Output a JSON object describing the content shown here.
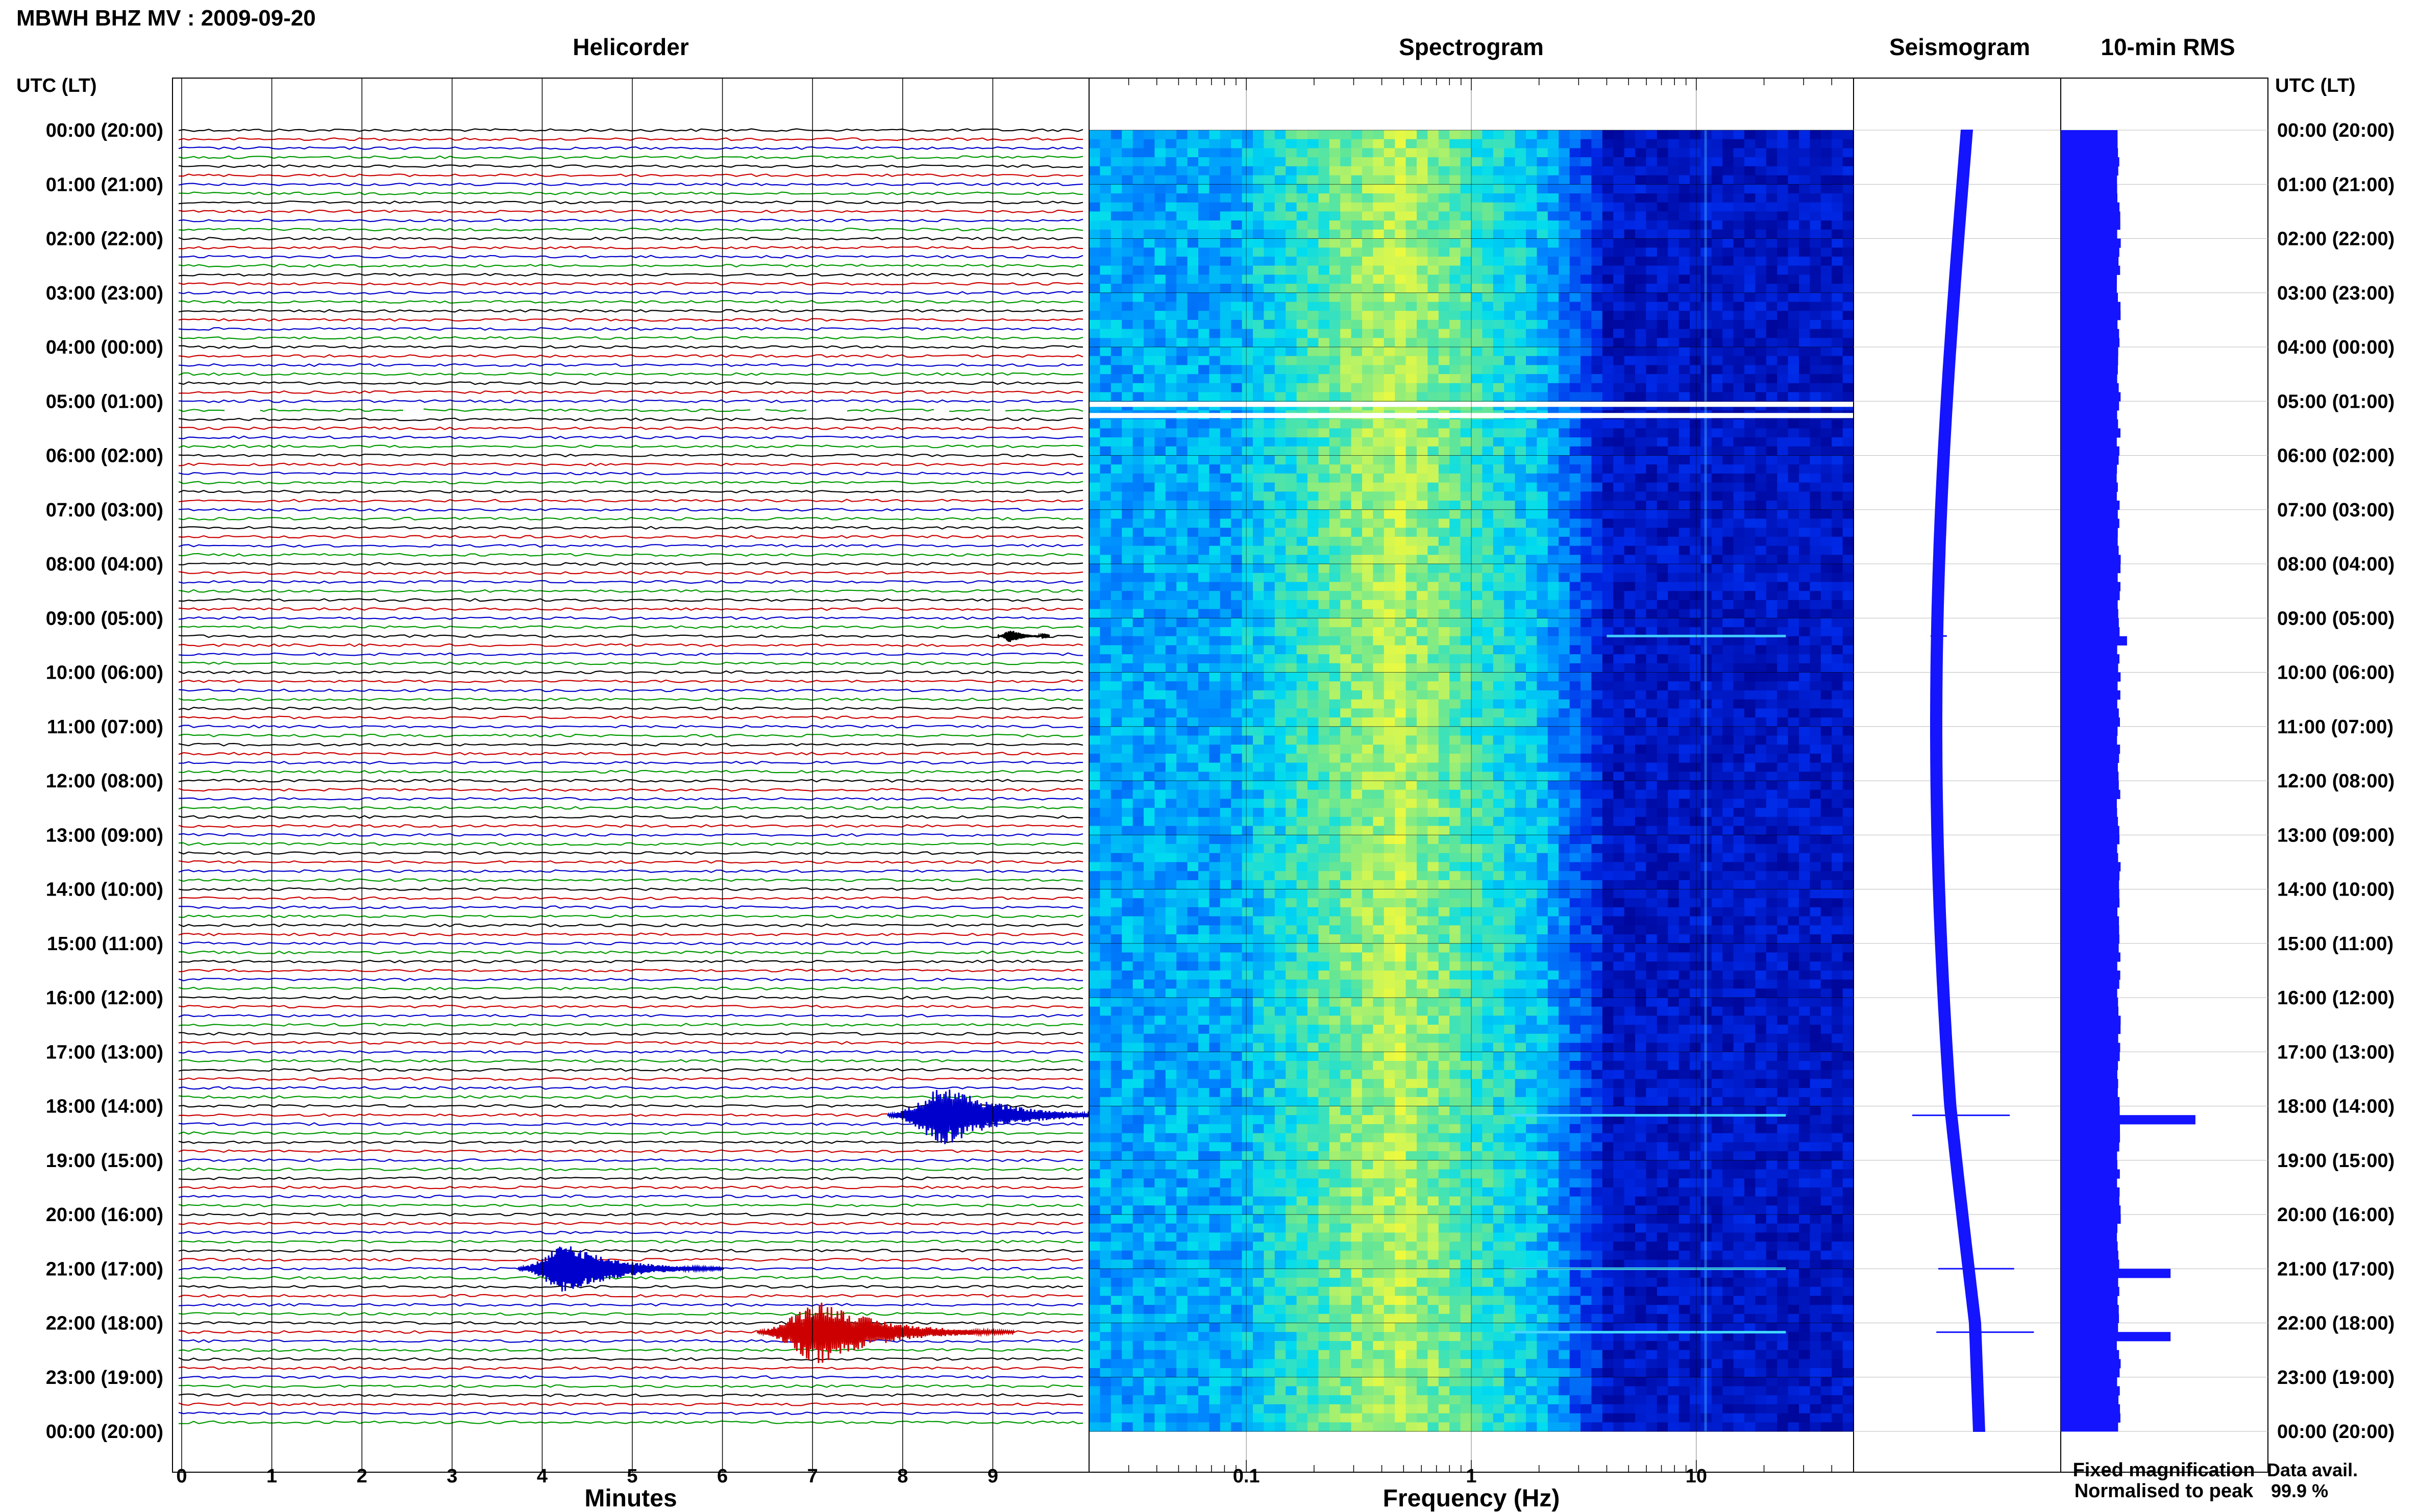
{
  "header": {
    "title": "MBWH BHZ MV : 2009-09-20",
    "utc_label_left": "UTC (LT)",
    "utc_label_right": "UTC (LT)"
  },
  "panels": {
    "helicorder": "Helicorder",
    "spectrogram": "Spectrogram",
    "seismogram": "Seismogram",
    "rms": "10-min RMS"
  },
  "axes": {
    "minutes_label": "Minutes",
    "frequency_label": "Frequency (Hz)",
    "minute_ticks": [
      "0",
      "1",
      "2",
      "3",
      "4",
      "5",
      "6",
      "7",
      "8",
      "9"
    ],
    "frequency_ticks": [
      {
        "value": 0.1,
        "label": "0.1"
      },
      {
        "value": 1,
        "label": "1"
      },
      {
        "value": 10,
        "label": "10"
      }
    ],
    "frequency_range": [
      0.02,
      50
    ]
  },
  "legend": {
    "fixed": "Fixed magnification",
    "normalised": "Normalised to peak",
    "fixed_color": "#0000ff",
    "normalised_color": "#ff0000"
  },
  "data_avail": {
    "label": "Data avail.",
    "value": "99.9 %"
  },
  "colors": {
    "trace_cycle": [
      "#000000",
      "#cc0000",
      "#0000cc",
      "#009900"
    ],
    "seismogram": "#1414ff",
    "rms_bar": "#1414ff"
  },
  "chart_data": {
    "type": "heatmap",
    "title": "MBWH BHZ MV : 2009-09-20",
    "hour_labels": [
      "00:00 (20:00)",
      "01:00 (21:00)",
      "02:00 (22:00)",
      "03:00 (23:00)",
      "04:00 (00:00)",
      "05:00 (01:00)",
      "06:00 (02:00)",
      "07:00 (03:00)",
      "08:00 (04:00)",
      "09:00 (05:00)",
      "10:00 (06:00)",
      "11:00 (07:00)",
      "12:00 (08:00)",
      "13:00 (09:00)",
      "14:00 (10:00)",
      "15:00 (11:00)",
      "16:00 (12:00)",
      "17:00 (13:00)",
      "18:00 (14:00)",
      "19:00 (15:00)",
      "20:00 (16:00)",
      "21:00 (17:00)",
      "22:00 (18:00)",
      "23:00 (19:00)",
      "00:00 (20:00)"
    ],
    "helicorder_events": [
      {
        "hour": 9.33,
        "minute": 9.2,
        "amplitude": 0.3,
        "color": "#000000"
      },
      {
        "hour": 18.17,
        "minute": 8.5,
        "amplitude": 1.4,
        "color": "#0000cc"
      },
      {
        "hour": 21.0,
        "minute": 4.3,
        "amplitude": 1.2,
        "color": "#0000cc"
      },
      {
        "hour": 22.17,
        "minute": 7.1,
        "amplitude": 1.5,
        "color": "#cc0000"
      }
    ],
    "data_gap_hour": 5.17,
    "rms_10min": {
      "baseline": 0.28,
      "peaks": [
        {
          "hour": 9.33,
          "value": 0.32
        },
        {
          "hour": 18.17,
          "value": 0.65
        },
        {
          "hour": 21.0,
          "value": 0.53
        },
        {
          "hour": 22.17,
          "value": 0.53
        }
      ]
    },
    "seismogram_spikes": [
      {
        "hour": 9.33,
        "width": 0.15
      },
      {
        "hour": 18.17,
        "width": 0.9
      },
      {
        "hour": 21.0,
        "width": 0.7
      },
      {
        "hour": 22.17,
        "width": 0.9
      }
    ]
  }
}
